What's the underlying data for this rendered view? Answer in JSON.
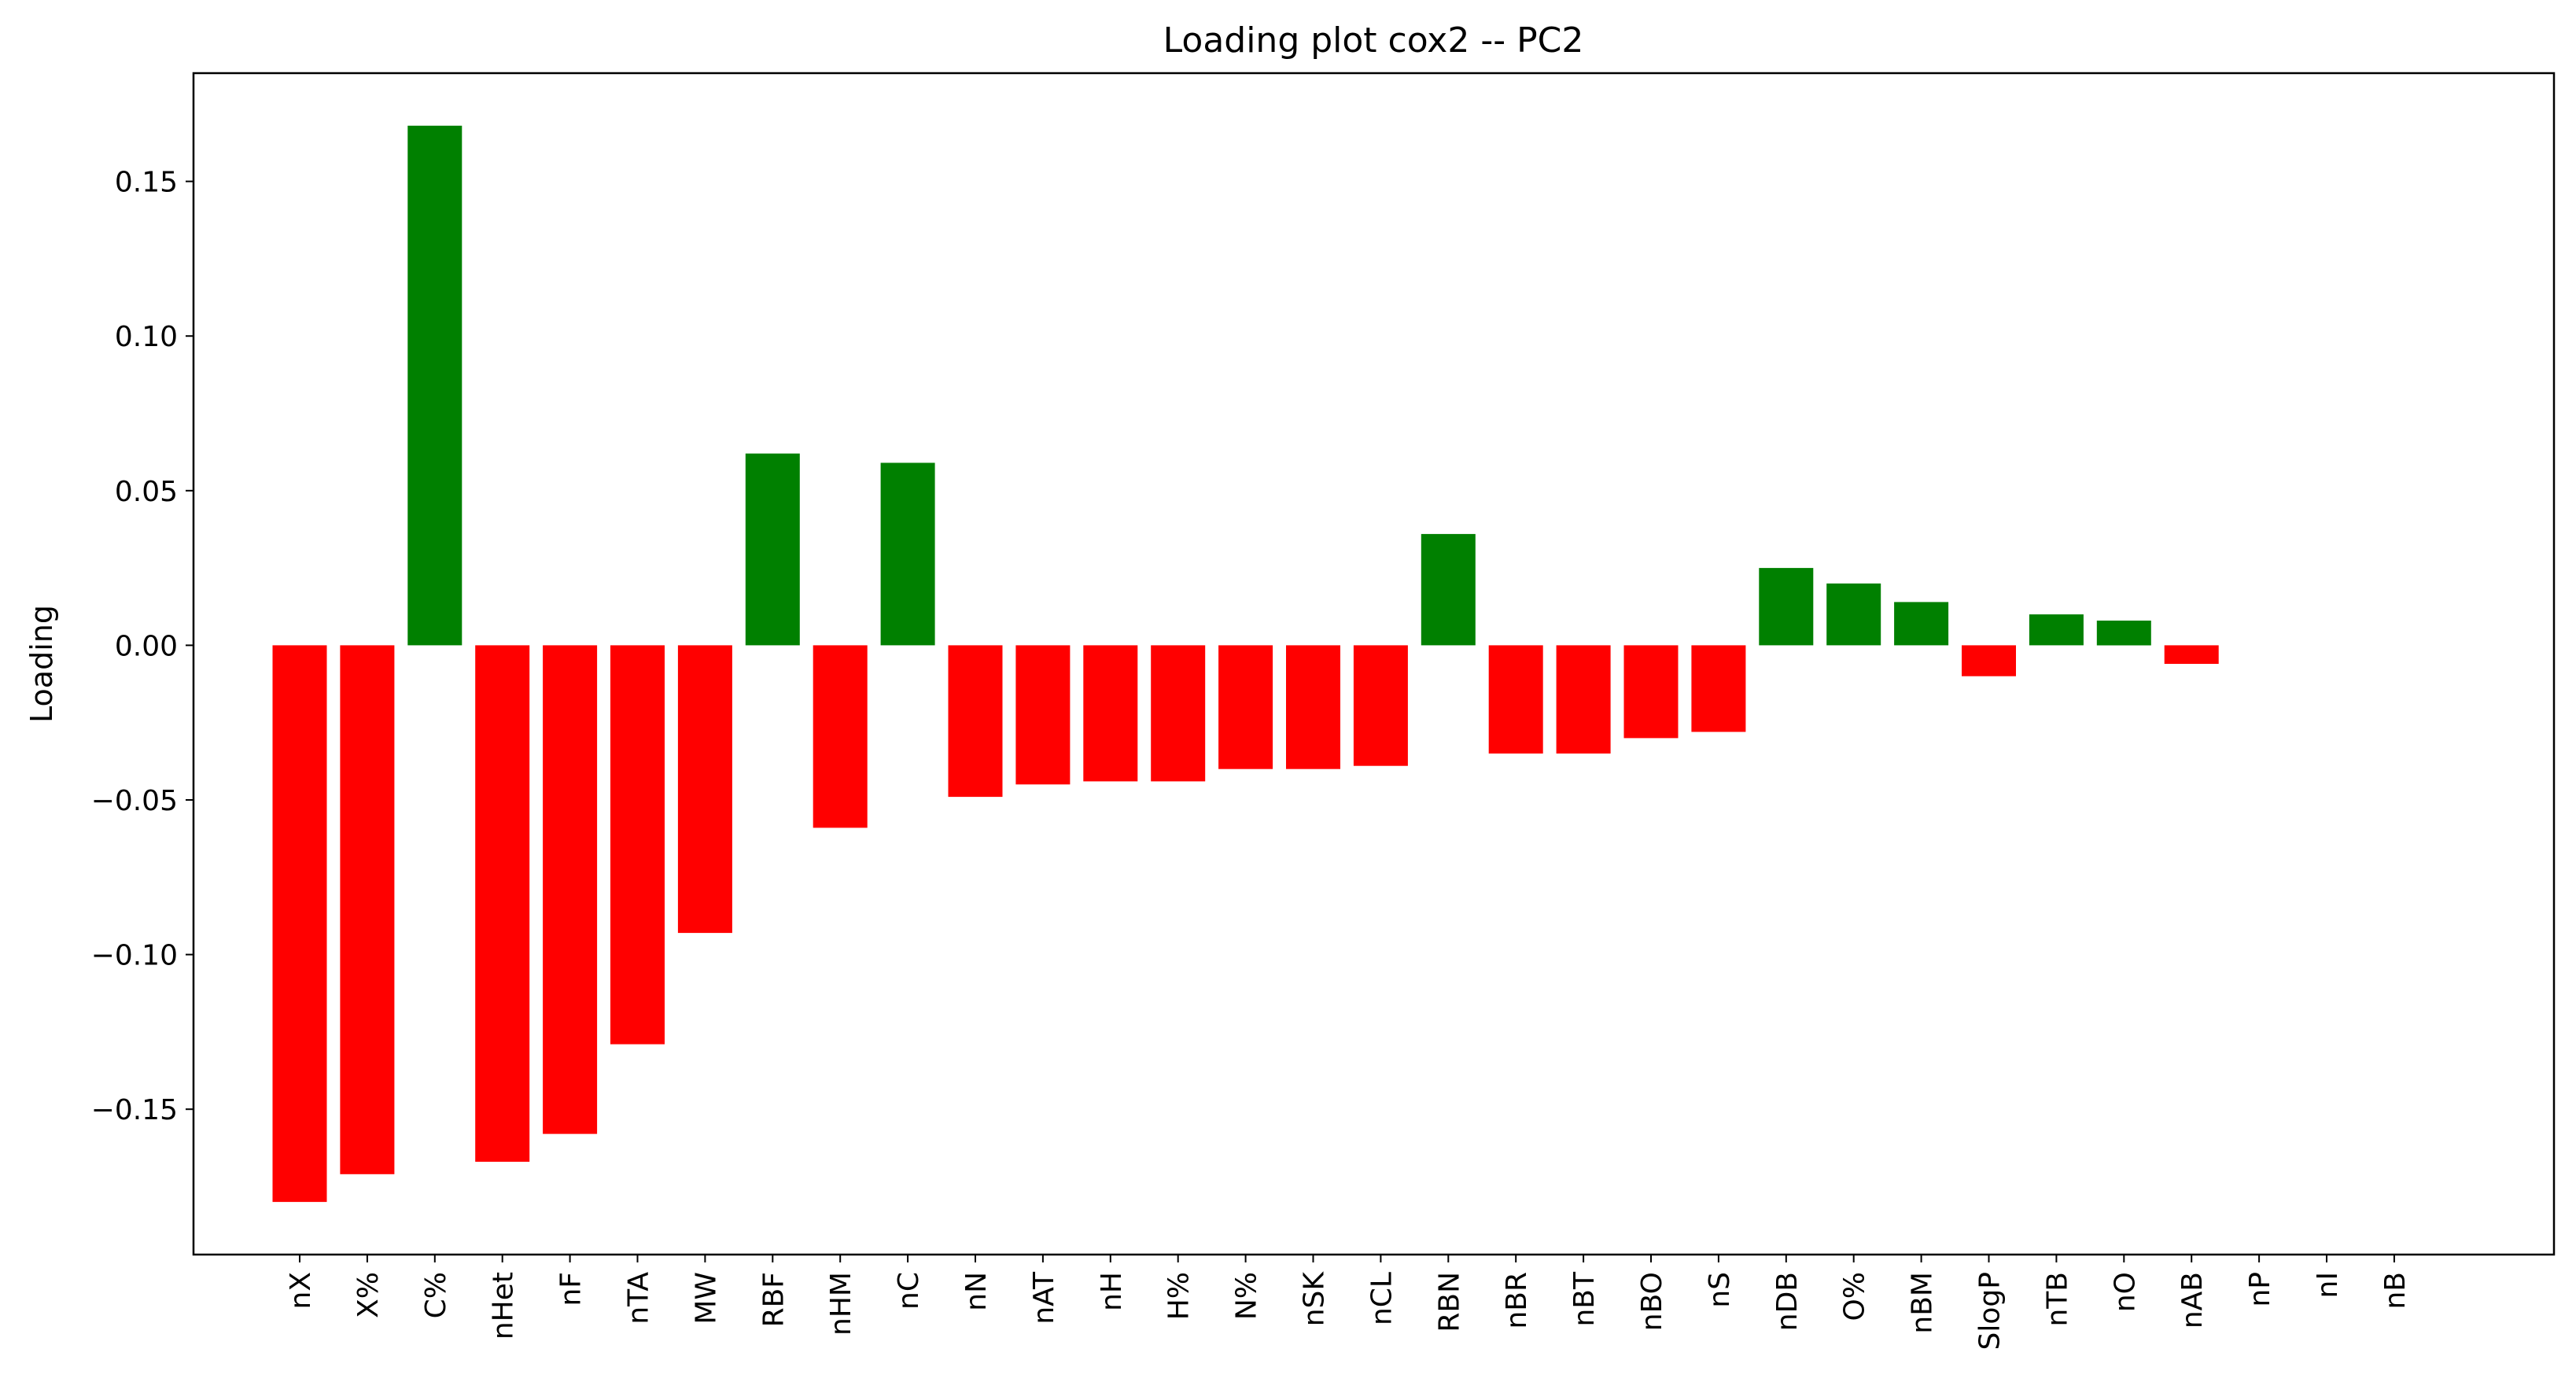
{
  "chart_data": {
    "type": "bar",
    "title": "Loading plot cox2 -- PC2",
    "xlabel": "",
    "ylabel": "Loading",
    "categories": [
      "nX",
      "X%",
      "C%",
      "nHet",
      "nF",
      "nTA",
      "MW",
      "RBF",
      "nHM",
      "nC",
      "nN",
      "nAT",
      "nH",
      "H%",
      "N%",
      "nSK",
      "nCL",
      "RBN",
      "nBR",
      "nBT",
      "nBO",
      "nS",
      "nDB",
      "O%",
      "nBM",
      "SlogP",
      "nTB",
      "nO",
      "nAB",
      "nP",
      "nI",
      "nB"
    ],
    "values": [
      -0.18,
      -0.171,
      0.168,
      -0.167,
      -0.158,
      -0.129,
      -0.093,
      0.062,
      -0.059,
      0.059,
      -0.049,
      -0.045,
      -0.044,
      -0.044,
      -0.04,
      -0.04,
      -0.039,
      0.036,
      -0.035,
      -0.035,
      -0.03,
      -0.028,
      0.025,
      0.02,
      0.014,
      -0.01,
      0.01,
      0.008,
      -0.006,
      0.0,
      0.0,
      0.0
    ],
    "ylim": [
      -0.197,
      0.185
    ],
    "yticks": [
      -0.15,
      -0.1,
      -0.05,
      0.0,
      0.05,
      0.1,
      0.15
    ],
    "ytick_labels": [
      "−0.15",
      "−0.10",
      "−0.05",
      "0.00",
      "0.05",
      "0.10",
      "0.15"
    ],
    "grid": false,
    "colors": {
      "positive": "#008000",
      "negative": "#ff0000",
      "axis": "#000000"
    }
  }
}
